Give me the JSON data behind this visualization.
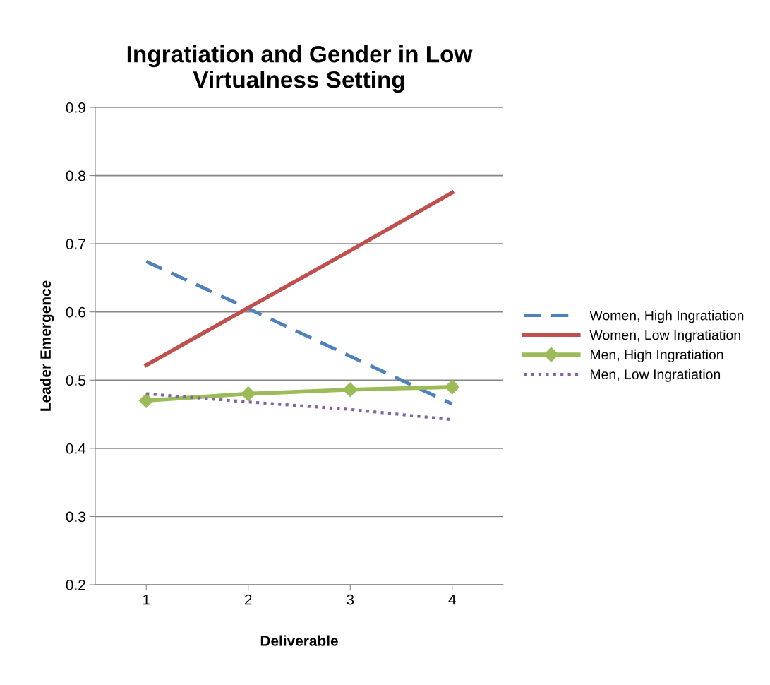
{
  "chart_data": {
    "type": "line",
    "title": "Ingratiation and Gender in Low\nVirtualness Setting",
    "xlabel": "Deliverable",
    "ylabel": "Leader Emergence",
    "categories": [
      "1",
      "2",
      "3",
      "4"
    ],
    "series": [
      {
        "name": "Women, High Ingratiation",
        "color": "#4f81bd",
        "line_style": "dashed",
        "marker": "none",
        "values": [
          0.674,
          0.605,
          0.535,
          0.465
        ]
      },
      {
        "name": "Women, Low Ingratiation",
        "color": "#c0504d",
        "line_style": "solid",
        "marker": "none",
        "values": [
          0.522,
          0.606,
          0.69,
          0.775
        ]
      },
      {
        "name": "Men, High Ingratiation",
        "color": "#9bbb59",
        "line_style": "solid",
        "marker": "diamond",
        "values": [
          0.47,
          0.48,
          0.486,
          0.49
        ]
      },
      {
        "name": "Men, Low Ingratiation",
        "color": "#8064a2",
        "line_style": "dotted",
        "marker": "none",
        "values": [
          0.48,
          0.468,
          0.457,
          0.442
        ]
      }
    ],
    "ylim": [
      0.2,
      0.9
    ],
    "yticks": [
      0.2,
      0.3,
      0.4,
      0.5,
      0.6,
      0.7,
      0.8,
      0.9
    ],
    "grid": "y",
    "legend": "right"
  }
}
